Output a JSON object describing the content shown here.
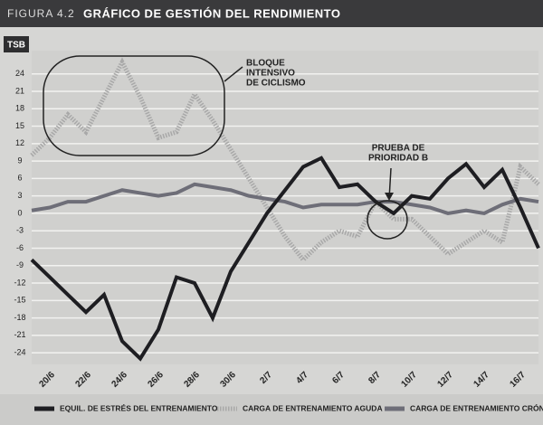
{
  "chart_data": {
    "type": "line",
    "figure_label": "FIGURA 4.2",
    "title": "GRÁFICO DE GESTIÓN DEL RENDIMIENTO",
    "y_label": "TSB",
    "categories": [
      null,
      "20/6",
      null,
      "22/6",
      null,
      "24/6",
      null,
      "26/6",
      null,
      "28/6",
      null,
      "30/6",
      null,
      "2/7",
      null,
      "4/7",
      null,
      "6/7",
      null,
      "8/7",
      null,
      "10/7",
      null,
      "12/7",
      null,
      "14/7",
      null,
      "16/7",
      null
    ],
    "ylim": [
      -26,
      28
    ],
    "yticks": [
      24,
      21,
      18,
      15,
      12,
      9,
      6,
      3,
      0,
      -3,
      -6,
      -9,
      -12,
      -15,
      -18,
      -21,
      -24
    ],
    "grid": true,
    "series": [
      {
        "name": "CARGA DE ENTRENAMIENTO AGUDA",
        "color": "#a8a8a8",
        "style": "dotted",
        "values": [
          10,
          13,
          17,
          14,
          20,
          26,
          20,
          13,
          14,
          20.5,
          16,
          11,
          6,
          1,
          -4,
          -8,
          -5,
          -3,
          -4,
          2,
          -1,
          -1,
          -4,
          -7,
          -5,
          -3,
          -5,
          8,
          5
        ]
      },
      {
        "name": "CARGA DE ENTRENAMIENTO CRÓNICA",
        "color": "#6e6e78",
        "style": "solid",
        "values": [
          0.5,
          1,
          2,
          2,
          3,
          4,
          3.5,
          3,
          3.5,
          5,
          4.5,
          4,
          3,
          2.5,
          2,
          1,
          1.5,
          1.5,
          1.5,
          2,
          2,
          1.5,
          1,
          0,
          0.5,
          0,
          1.5,
          2.5,
          2
        ]
      },
      {
        "name": "EQUIL. DE ESTRÉS DEL ENTRENAMIENTO",
        "color": "#1e1e22",
        "style": "solid",
        "values": [
          -8,
          -11,
          -14,
          -17,
          -14,
          -22,
          -25,
          -20,
          -11,
          -12,
          -18,
          -10,
          -5,
          0,
          4,
          8,
          9.5,
          4.5,
          5,
          2,
          0,
          3,
          2.5,
          6,
          8.5,
          4.5,
          7.5,
          1,
          -6
        ]
      }
    ],
    "annotations": [
      {
        "text": [
          "BLOQUE",
          "INTENSIVO",
          "DE CICLISMO"
        ]
      },
      {
        "text": [
          "PRUEBA DE",
          "PRIORIDAD B"
        ]
      }
    ],
    "legend_order": [
      2,
      0,
      1
    ]
  }
}
